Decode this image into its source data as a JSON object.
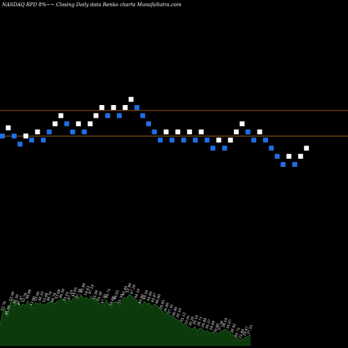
{
  "header": {
    "title": "NASDAQ RPD 8%~~ Closing Daily data Renko charts MunafaSutra.com"
  },
  "chart_data": {
    "type": "renko",
    "title": "NASDAQ RPD 8%~~ Closing Daily data Renko charts MunafaSutra.com",
    "xlabel": "",
    "ylabel": "",
    "ylim": [
      10,
      36
    ],
    "reference_lines": [
      26.5,
      24.0
    ],
    "colors": {
      "background": "#000000",
      "up_brick": "#ffffff",
      "down_brick": "#1f6fe5",
      "reference_line": "#c8781e",
      "volume_fill": "#0c3a0c",
      "volume_line": "#2e8a2e",
      "label_text": "#ffffff"
    },
    "bricks": [
      {
        "value": 24.0,
        "dir": "down"
      },
      {
        "value": 24.8,
        "dir": "up"
      },
      {
        "value": 24.0,
        "dir": "down"
      },
      {
        "value": 23.2,
        "dir": "down"
      },
      {
        "value": 24.0,
        "dir": "up"
      },
      {
        "value": 23.6,
        "dir": "down"
      },
      {
        "value": 24.4,
        "dir": "up"
      },
      {
        "value": 23.6,
        "dir": "down"
      },
      {
        "value": 24.4,
        "dir": "down"
      },
      {
        "value": 25.2,
        "dir": "up"
      },
      {
        "value": 26.0,
        "dir": "up"
      },
      {
        "value": 25.2,
        "dir": "down"
      },
      {
        "value": 24.4,
        "dir": "down"
      },
      {
        "value": 25.2,
        "dir": "up"
      },
      {
        "value": 24.4,
        "dir": "down"
      },
      {
        "value": 25.2,
        "dir": "up"
      },
      {
        "value": 26.0,
        "dir": "up"
      },
      {
        "value": 26.8,
        "dir": "up"
      },
      {
        "value": 26.0,
        "dir": "down"
      },
      {
        "value": 26.8,
        "dir": "up"
      },
      {
        "value": 26.0,
        "dir": "down"
      },
      {
        "value": 26.8,
        "dir": "up"
      },
      {
        "value": 27.6,
        "dir": "up"
      },
      {
        "value": 26.8,
        "dir": "down"
      },
      {
        "value": 26.0,
        "dir": "down"
      },
      {
        "value": 25.2,
        "dir": "down"
      },
      {
        "value": 24.4,
        "dir": "down"
      },
      {
        "value": 23.6,
        "dir": "down"
      },
      {
        "value": 24.4,
        "dir": "up"
      },
      {
        "value": 23.6,
        "dir": "down"
      },
      {
        "value": 24.4,
        "dir": "up"
      },
      {
        "value": 23.6,
        "dir": "down"
      },
      {
        "value": 24.4,
        "dir": "up"
      },
      {
        "value": 23.6,
        "dir": "down"
      },
      {
        "value": 24.4,
        "dir": "up"
      },
      {
        "value": 23.6,
        "dir": "down"
      },
      {
        "value": 22.8,
        "dir": "down"
      },
      {
        "value": 23.6,
        "dir": "up"
      },
      {
        "value": 22.8,
        "dir": "down"
      },
      {
        "value": 23.6,
        "dir": "up"
      },
      {
        "value": 24.4,
        "dir": "up"
      },
      {
        "value": 25.2,
        "dir": "up"
      },
      {
        "value": 24.4,
        "dir": "down"
      },
      {
        "value": 23.6,
        "dir": "down"
      },
      {
        "value": 24.4,
        "dir": "up"
      },
      {
        "value": 23.6,
        "dir": "down"
      },
      {
        "value": 22.8,
        "dir": "down"
      },
      {
        "value": 22.0,
        "dir": "down"
      },
      {
        "value": 21.2,
        "dir": "down"
      },
      {
        "value": 22.0,
        "dir": "up"
      },
      {
        "value": 21.2,
        "dir": "down"
      },
      {
        "value": 22.0,
        "dir": "up"
      },
      {
        "value": 22.8,
        "dir": "up"
      }
    ],
    "volume": [
      30,
      48,
      55,
      42,
      62,
      68,
      58,
      65,
      56,
      60,
      58,
      65,
      57,
      55,
      62,
      60,
      62,
      58,
      60,
      62,
      64,
      60,
      62,
      65,
      66,
      68,
      62,
      67,
      64,
      68,
      72,
      66,
      74,
      68,
      70,
      66,
      72,
      64,
      68,
      62,
      60,
      58,
      66,
      60,
      55,
      62,
      64,
      58,
      62,
      70,
      68,
      74,
      72,
      68,
      66,
      62,
      58,
      64,
      60,
      62,
      56,
      60,
      58,
      54,
      50,
      46,
      48,
      44,
      42,
      40,
      38,
      36,
      32,
      30,
      28,
      26,
      24,
      28,
      22,
      26,
      24,
      20,
      22,
      18,
      20,
      16,
      18,
      20,
      22,
      24,
      22,
      18,
      16,
      14,
      10,
      8,
      10,
      12,
      14,
      16
    ],
    "volume_labels": [
      "53.76",
      "46.99",
      "53.90",
      "46.50",
      "47.47",
      "53.79",
      "46.88",
      "43.66",
      "53.66",
      "46.10",
      "53.68",
      "46.70",
      "48.79",
      "53.68",
      "46.50",
      "55.01",
      "47.10",
      "44.65",
      "57.30",
      "45.80",
      "54.63",
      "47.24",
      "45.90",
      "55.50",
      "47.30",
      "44.75",
      "56.88",
      "46.62",
      "55.30",
      "45.40",
      "52.80",
      "47.20",
      "44.10",
      "40.80",
      "40.50",
      "44.00",
      "40.87",
      "46.90",
      "39.83",
      "30.80",
      "37.41",
      "36.06",
      "30.10",
      "35.12",
      "33.91",
      "30.20",
      "36.10",
      "38.71",
      "39.80",
      "36.37",
      "34.60",
      "39.90",
      "37.30",
      "38.10",
      "34.67",
      "28.82",
      "30.73",
      "32.80",
      "29.47",
      "37.53"
    ]
  }
}
